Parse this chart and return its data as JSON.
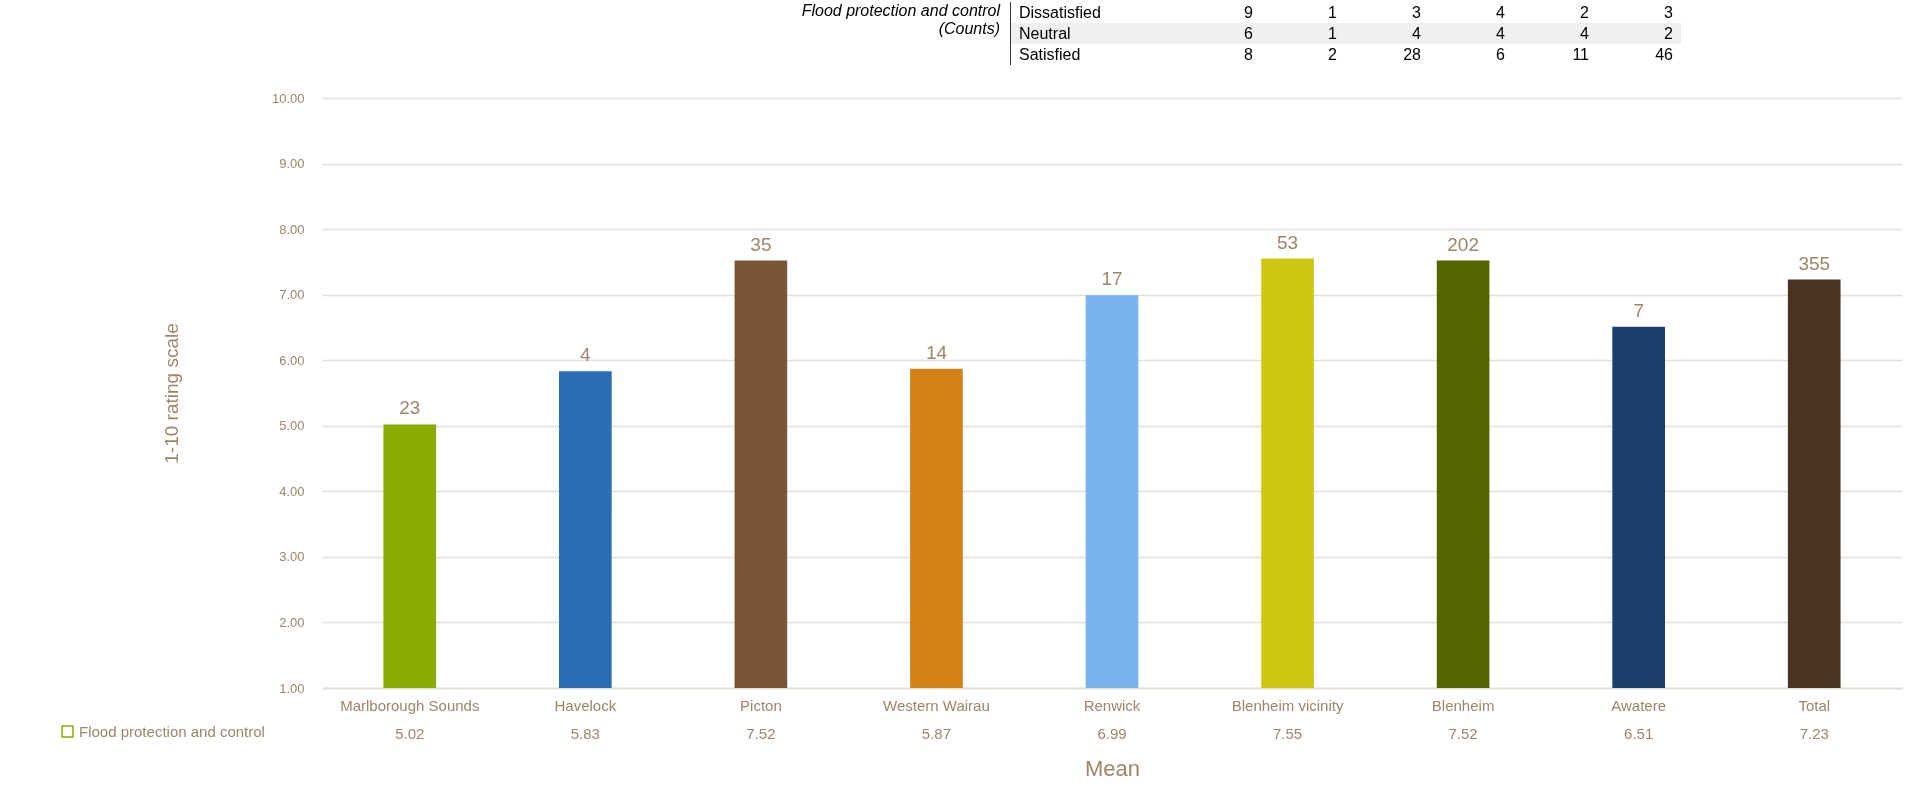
{
  "chart_data": {
    "type": "bar",
    "xlabel": "Mean",
    "ylabel": "1-10 rating scale",
    "categories": [
      "Marlborough Sounds",
      "Havelock",
      "Picton",
      "Western Wairau",
      "Renwick",
      "Blenheim vicinity",
      "Blenheim",
      "Awatere",
      "Total"
    ],
    "series": [
      {
        "name": "Flood protection and control",
        "values": [
          5.02,
          5.83,
          7.52,
          5.87,
          6.99,
          7.55,
          7.52,
          6.51,
          7.23
        ]
      }
    ],
    "colors": [
      "#8aab00",
      "#2a6db5",
      "#7a5636",
      "#d28216",
      "#7ab3f0",
      "#cfc70f",
      "#536600",
      "#1b3f6b",
      "#4a3322"
    ],
    "value_labels": [
      "23",
      "4",
      "35",
      "14",
      "17",
      "53",
      "202",
      "7",
      "355"
    ],
    "data_labels": true,
    "ylim": [
      1,
      10
    ],
    "yticks": [
      {
        "value": 1,
        "label": "1.00"
      },
      {
        "value": 2,
        "label": "2.00"
      },
      {
        "value": 3,
        "label": "3.00"
      },
      {
        "value": 4,
        "label": "4.00"
      },
      {
        "value": 5,
        "label": "5.00"
      },
      {
        "value": 6,
        "label": "6.00"
      },
      {
        "value": 7,
        "label": "7.00"
      },
      {
        "value": 8,
        "label": "8.00"
      },
      {
        "value": 9,
        "label": "9.00"
      },
      {
        "value": 10,
        "label": "10.00"
      }
    ],
    "grid": "y",
    "legend": "bottom left",
    "annotations": [
      "Flood protection and control (Counts)",
      "Dissatisfied 9 1 3 4 2 3",
      "Neutral 6 1 4 4 4 2",
      "Satisfied 8 2 28 6 11 46"
    ]
  }
}
